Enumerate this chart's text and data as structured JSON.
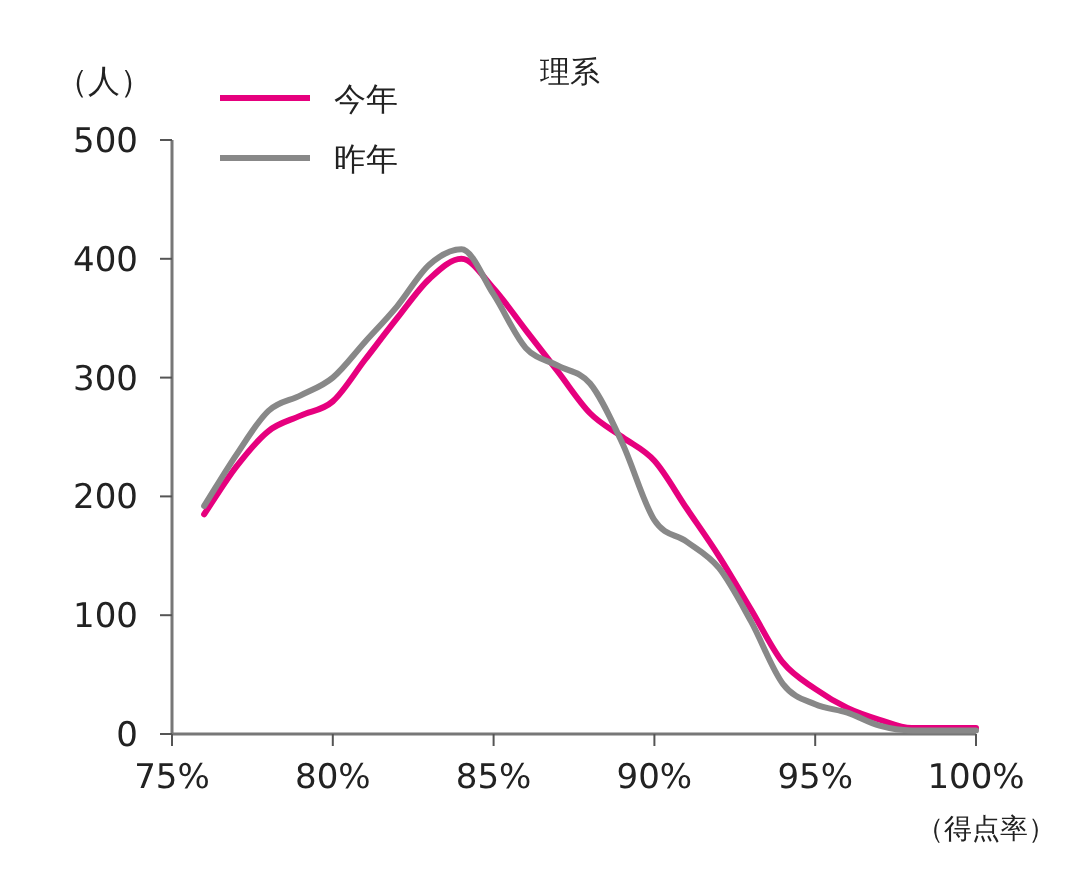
{
  "chart_data": {
    "type": "line",
    "title": "理系",
    "ylabel": "（人）",
    "xlabel": "（得点率）",
    "x": [
      76,
      77,
      78,
      79,
      80,
      81,
      82,
      83,
      84,
      85,
      86,
      87,
      88,
      89,
      90,
      91,
      92,
      93,
      94,
      95,
      96,
      97,
      98,
      99,
      100
    ],
    "series": [
      {
        "name": "今年",
        "color": "#e6007e",
        "values": [
          185,
          225,
          255,
          268,
          280,
          315,
          350,
          383,
          400,
          375,
          340,
          305,
          270,
          250,
          230,
          190,
          150,
          105,
          60,
          38,
          22,
          12,
          5,
          5,
          5
        ]
      },
      {
        "name": "昨年",
        "color": "#888888",
        "values": [
          192,
          235,
          272,
          285,
          300,
          330,
          360,
          395,
          408,
          370,
          325,
          310,
          295,
          245,
          180,
          162,
          140,
          95,
          42,
          25,
          18,
          7,
          3,
          3,
          3
        ]
      }
    ],
    "xlim": [
      75,
      100
    ],
    "xticks": [
      {
        "value": 75,
        "label": "75%"
      },
      {
        "value": 80,
        "label": "80%"
      },
      {
        "value": 85,
        "label": "85%"
      },
      {
        "value": 90,
        "label": "90%"
      },
      {
        "value": 95,
        "label": "95%"
      },
      {
        "value": 100,
        "label": "100%"
      }
    ],
    "ylim": [
      0,
      500
    ],
    "yticks": [
      0,
      100,
      200,
      300,
      400,
      500
    ],
    "grid": false,
    "legend": "top left",
    "marker": "none",
    "line_style": "solid"
  }
}
